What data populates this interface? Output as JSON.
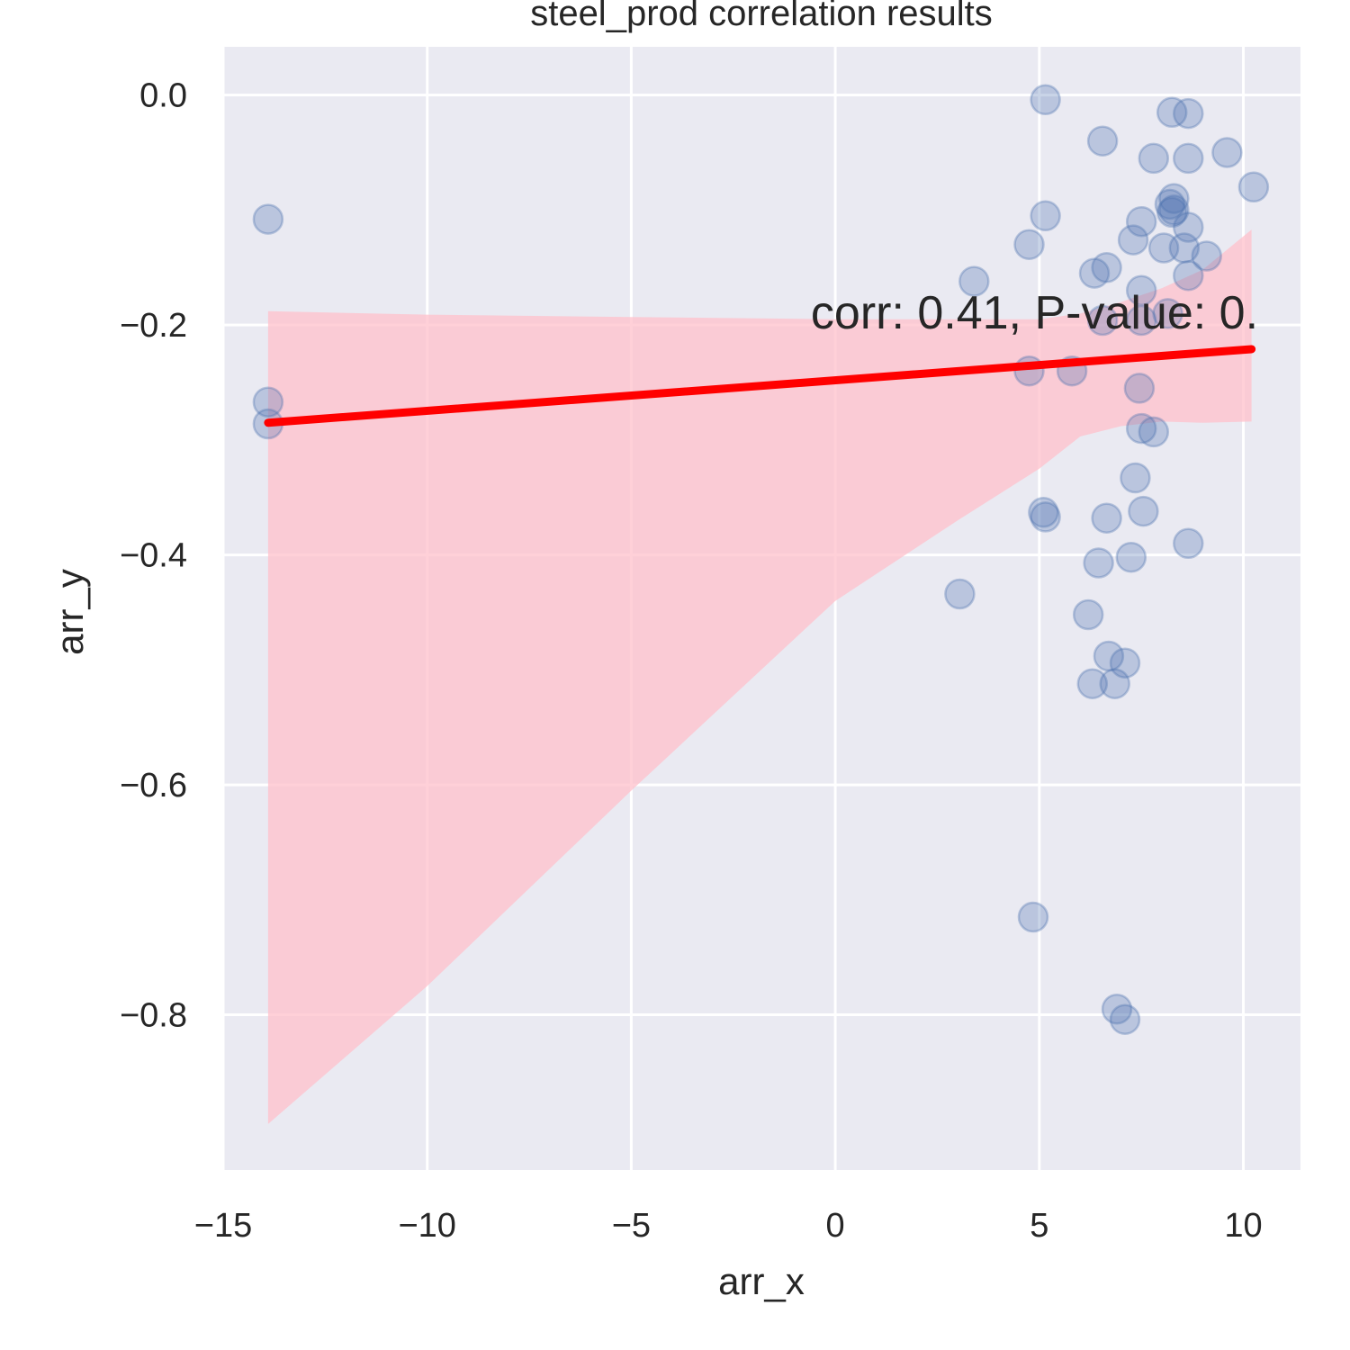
{
  "chart_data": {
    "type": "scatter",
    "title": "steel_prod correlation results",
    "xlabel": "arr_x",
    "ylabel": "arr_y",
    "xlim": [
      -15,
      11.4
    ],
    "ylim": [
      -0.935,
      0.042
    ],
    "x_ticks": [
      -15,
      -10,
      -5,
      0,
      5,
      10
    ],
    "x_tick_labels": [
      "−15",
      "−10",
      "−5",
      "0",
      "5",
      "10"
    ],
    "y_ticks": [
      0.0,
      -0.2,
      -0.4,
      -0.6,
      -0.8
    ],
    "y_tick_labels": [
      "0.0",
      "−0.2",
      "−0.4",
      "−0.6",
      "−0.8"
    ],
    "grid": true,
    "annotation": {
      "text": "corr: 0.41, P-value: 0.",
      "x": -0.6,
      "y": -0.2
    },
    "regression": {
      "x": [
        -13.9,
        10.2
      ],
      "y": [
        -0.285,
        -0.221
      ],
      "ci_upper": [
        [
          -13.9,
          -0.188
        ],
        [
          -10.0,
          -0.191
        ],
        [
          -5.0,
          -0.193
        ],
        [
          0.0,
          -0.195
        ],
        [
          5.0,
          -0.195
        ],
        [
          6.0,
          -0.19
        ],
        [
          7.0,
          -0.18
        ],
        [
          8.0,
          -0.168
        ],
        [
          9.0,
          -0.152
        ],
        [
          10.2,
          -0.117
        ]
      ],
      "ci_lower": [
        [
          10.2,
          -0.284
        ],
        [
          9.0,
          -0.285
        ],
        [
          8.0,
          -0.284
        ],
        [
          7.0,
          -0.288
        ],
        [
          6.0,
          -0.297
        ],
        [
          5.0,
          -0.325
        ],
        [
          3.0,
          -0.37
        ],
        [
          0.0,
          -0.44
        ],
        [
          -5.0,
          -0.605
        ],
        [
          -10.0,
          -0.775
        ],
        [
          -13.9,
          -0.895
        ]
      ],
      "line_color": "#ff0000",
      "band_color": "#ffc0cb"
    },
    "points_color": "#4c72b0",
    "points": [
      [
        -13.9,
        -0.108
      ],
      [
        -13.9,
        -0.267
      ],
      [
        -13.9,
        -0.286
      ],
      [
        5.15,
        -0.004
      ],
      [
        6.55,
        -0.04
      ],
      [
        8.25,
        -0.015
      ],
      [
        8.65,
        -0.016
      ],
      [
        7.8,
        -0.055
      ],
      [
        8.65,
        -0.055
      ],
      [
        9.6,
        -0.05
      ],
      [
        10.25,
        -0.08
      ],
      [
        8.3,
        -0.09
      ],
      [
        8.2,
        -0.095
      ],
      [
        8.3,
        -0.1
      ],
      [
        8.25,
        -0.102
      ],
      [
        5.15,
        -0.105
      ],
      [
        7.5,
        -0.11
      ],
      [
        8.65,
        -0.115
      ],
      [
        7.3,
        -0.126
      ],
      [
        4.75,
        -0.13
      ],
      [
        8.05,
        -0.133
      ],
      [
        8.55,
        -0.133
      ],
      [
        9.1,
        -0.14
      ],
      [
        3.4,
        -0.162
      ],
      [
        6.35,
        -0.155
      ],
      [
        6.65,
        -0.15
      ],
      [
        8.65,
        -0.157
      ],
      [
        7.5,
        -0.17
      ],
      [
        6.55,
        -0.196
      ],
      [
        7.5,
        -0.196
      ],
      [
        8.15,
        -0.19
      ],
      [
        4.75,
        -0.24
      ],
      [
        5.8,
        -0.24
      ],
      [
        7.45,
        -0.255
      ],
      [
        7.5,
        -0.29
      ],
      [
        7.8,
        -0.293
      ],
      [
        7.35,
        -0.333
      ],
      [
        5.1,
        -0.363
      ],
      [
        5.15,
        -0.367
      ],
      [
        6.65,
        -0.368
      ],
      [
        7.55,
        -0.362
      ],
      [
        8.65,
        -0.39
      ],
      [
        6.45,
        -0.407
      ],
      [
        7.25,
        -0.402
      ],
      [
        3.05,
        -0.434
      ],
      [
        6.2,
        -0.452
      ],
      [
        6.7,
        -0.488
      ],
      [
        7.1,
        -0.494
      ],
      [
        6.3,
        -0.512
      ],
      [
        6.85,
        -0.512
      ],
      [
        4.85,
        -0.715
      ],
      [
        6.9,
        -0.795
      ],
      [
        7.1,
        -0.804
      ]
    ]
  }
}
